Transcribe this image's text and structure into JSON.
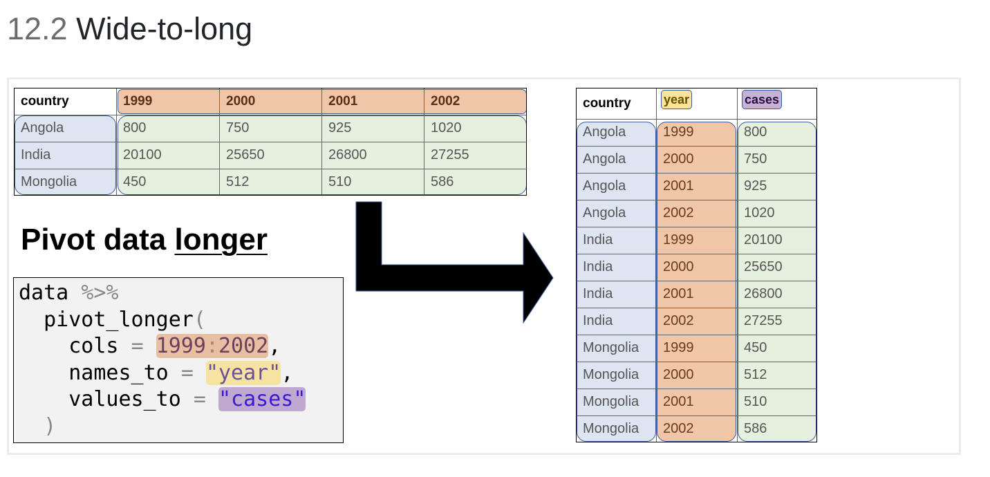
{
  "heading": {
    "number": "12.2",
    "title": "Wide-to-long"
  },
  "colors": {
    "country": "#dde4f2",
    "years": "#efc6a7",
    "values": "#e6f0de",
    "year_pill": "#f9e49a",
    "cases_pill": "#c6b1d7",
    "outline": "#3c5a99"
  },
  "wide_table": {
    "headers": [
      "country",
      "1999",
      "2000",
      "2001",
      "2002"
    ],
    "rows": [
      [
        "Angola",
        "800",
        "750",
        "925",
        "1020"
      ],
      [
        "India",
        "20100",
        "25650",
        "26800",
        "27255"
      ],
      [
        "Mongolia",
        "450",
        "512",
        "510",
        "586"
      ]
    ]
  },
  "pivot_title": {
    "prefix": "Pivot data ",
    "underlined": "longer"
  },
  "code": {
    "l1a": "data ",
    "l1b": "%>%",
    "l2a": "  pivot_longer",
    "l2b": "(",
    "l3a": "    cols ",
    "l3b": "= ",
    "l3c1": "1999",
    "l3c2": ":",
    "l3c3": "2002",
    "l3d": ",",
    "l4a": "    names_to ",
    "l4b": "= ",
    "l4c": "\"year\"",
    "l4d": ",",
    "l5a": "    values_to ",
    "l5b": "= ",
    "l5c": "\"cases\"",
    "l6": "  )"
  },
  "arrow_icon": "bent-arrow-right",
  "long_table": {
    "headers": [
      "country",
      "year",
      "cases"
    ],
    "rows": [
      [
        "Angola",
        "1999",
        "800"
      ],
      [
        "Angola",
        "2000",
        "750"
      ],
      [
        "Angola",
        "2001",
        "925"
      ],
      [
        "Angola",
        "2002",
        "1020"
      ],
      [
        "India",
        "1999",
        "20100"
      ],
      [
        "India",
        "2000",
        "25650"
      ],
      [
        "India",
        "2001",
        "26800"
      ],
      [
        "India",
        "2002",
        "27255"
      ],
      [
        "Mongolia",
        "1999",
        "450"
      ],
      [
        "Mongolia",
        "2000",
        "512"
      ],
      [
        "Mongolia",
        "2001",
        "510"
      ],
      [
        "Mongolia",
        "2002",
        "586"
      ]
    ]
  }
}
